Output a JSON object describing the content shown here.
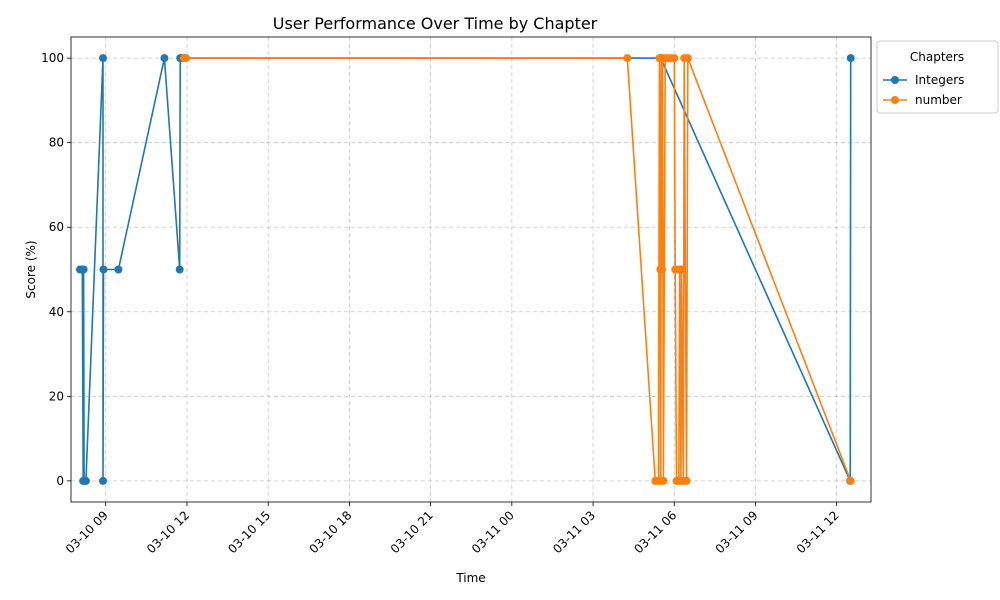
{
  "chart_data": {
    "type": "line",
    "title": "User Performance Over Time by Chapter",
    "xlabel": "Time",
    "ylabel": "Score (%)",
    "xlim": [
      "2025-03-10 07:43",
      "2025-03-11 13:16"
    ],
    "ylim": [
      -5,
      105
    ],
    "x_ticks": [
      {
        "t": "2025-03-10 09:00",
        "label": "03-10 09"
      },
      {
        "t": "2025-03-10 12:00",
        "label": "03-10 12"
      },
      {
        "t": "2025-03-10 15:00",
        "label": "03-10 15"
      },
      {
        "t": "2025-03-10 18:00",
        "label": "03-10 18"
      },
      {
        "t": "2025-03-10 21:00",
        "label": "03-10 21"
      },
      {
        "t": "2025-03-11 00:00",
        "label": "03-11 00"
      },
      {
        "t": "2025-03-11 03:00",
        "label": "03-11 03"
      },
      {
        "t": "2025-03-11 06:00",
        "label": "03-11 06"
      },
      {
        "t": "2025-03-11 09:00",
        "label": "03-11 09"
      },
      {
        "t": "2025-03-11 12:00",
        "label": "03-11 12"
      }
    ],
    "y_ticks": [
      0,
      20,
      40,
      60,
      80,
      100
    ],
    "grid": true,
    "legend": {
      "title": "Chapters",
      "placement": "outside-top-right"
    },
    "series": [
      {
        "name": "Integers",
        "color": "#1f77b4",
        "points": [
          {
            "t": "2025-03-10 08:03",
            "y": 50
          },
          {
            "t": "2025-03-10 08:08",
            "y": 50
          },
          {
            "t": "2025-03-10 08:10",
            "y": 0
          },
          {
            "t": "2025-03-10 08:11",
            "y": 50
          },
          {
            "t": "2025-03-10 08:12",
            "y": 0
          },
          {
            "t": "2025-03-10 08:16",
            "y": 0
          },
          {
            "t": "2025-03-10 08:54",
            "y": 100
          },
          {
            "t": "2025-03-10 08:54",
            "y": 0
          },
          {
            "t": "2025-03-10 08:55",
            "y": 50
          },
          {
            "t": "2025-03-10 09:28",
            "y": 50
          },
          {
            "t": "2025-03-10 11:10",
            "y": 100
          },
          {
            "t": "2025-03-10 11:44",
            "y": 50
          },
          {
            "t": "2025-03-10 11:45",
            "y": 100
          },
          {
            "t": "2025-03-10 11:48",
            "y": 100
          },
          {
            "t": "2025-03-10 11:55",
            "y": 100
          },
          {
            "t": "2025-03-11 05:30",
            "y": 100
          },
          {
            "t": "2025-03-11 12:30",
            "y": 0
          },
          {
            "t": "2025-03-11 12:31",
            "y": 100
          }
        ]
      },
      {
        "name": "number",
        "color": "#ff7f0e",
        "points": [
          {
            "t": "2025-03-10 11:53",
            "y": 100
          },
          {
            "t": "2025-03-10 11:58",
            "y": 100
          },
          {
            "t": "2025-03-11 04:16",
            "y": 100
          },
          {
            "t": "2025-03-11 05:18",
            "y": 0
          },
          {
            "t": "2025-03-11 05:25",
            "y": 0
          },
          {
            "t": "2025-03-11 05:27",
            "y": 100
          },
          {
            "t": "2025-03-11 05:29",
            "y": 50
          },
          {
            "t": "2025-03-11 05:30",
            "y": 0
          },
          {
            "t": "2025-03-11 05:31",
            "y": 100
          },
          {
            "t": "2025-03-11 05:33",
            "y": 50
          },
          {
            "t": "2025-03-11 05:34",
            "y": 100
          },
          {
            "t": "2025-03-11 05:36",
            "y": 0
          },
          {
            "t": "2025-03-11 05:40",
            "y": 100
          },
          {
            "t": "2025-03-11 05:45",
            "y": 100
          },
          {
            "t": "2025-03-11 05:52",
            "y": 100
          },
          {
            "t": "2025-03-11 06:00",
            "y": 100
          },
          {
            "t": "2025-03-11 06:02",
            "y": 50
          },
          {
            "t": "2025-03-11 06:05",
            "y": 0
          },
          {
            "t": "2025-03-11 06:10",
            "y": 0
          },
          {
            "t": "2025-03-11 06:12",
            "y": 50
          },
          {
            "t": "2025-03-11 06:15",
            "y": 0
          },
          {
            "t": "2025-03-11 06:16",
            "y": 50
          },
          {
            "t": "2025-03-11 06:20",
            "y": 0
          },
          {
            "t": "2025-03-11 06:22",
            "y": 100
          },
          {
            "t": "2025-03-11 06:27",
            "y": 0
          },
          {
            "t": "2025-03-11 06:30",
            "y": 100
          },
          {
            "t": "2025-03-11 12:31",
            "y": 0
          }
        ]
      }
    ]
  }
}
